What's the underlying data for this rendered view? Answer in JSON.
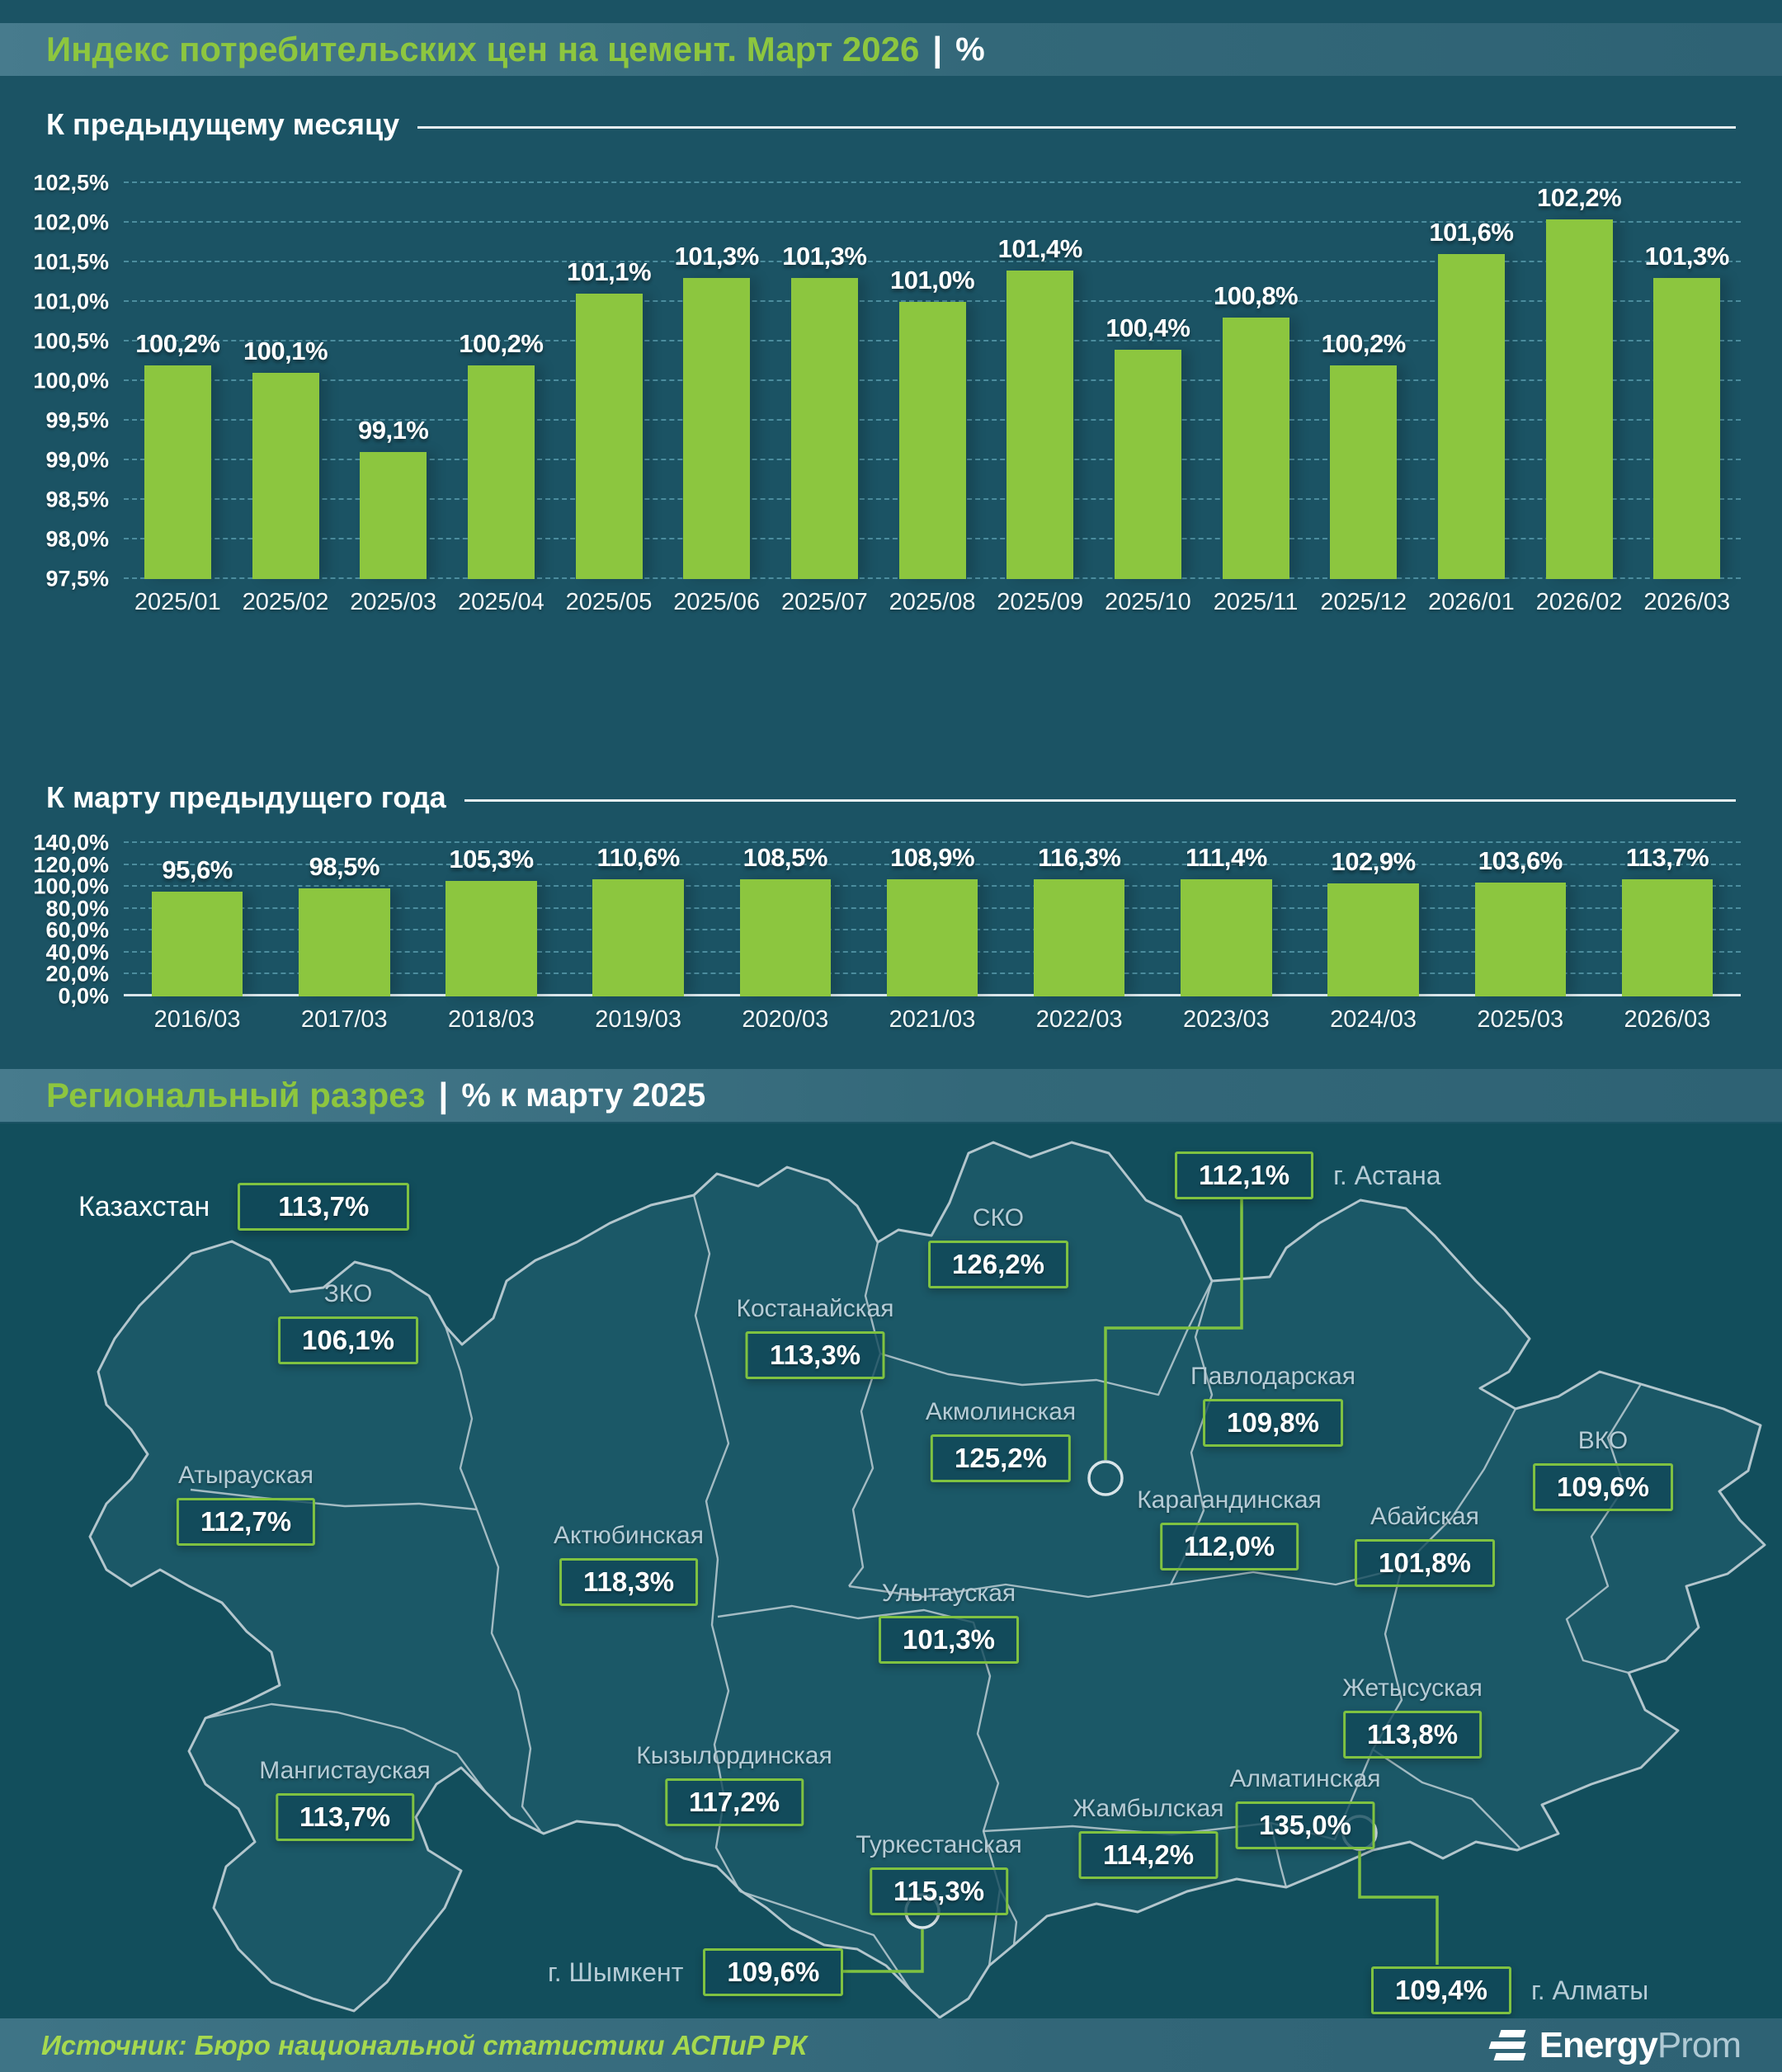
{
  "header": {
    "title": "Индекс потребительских цен на цемент. Март 2026",
    "separator": "|",
    "unit": "%"
  },
  "chart_data": [
    {
      "type": "bar",
      "heading": "К предыдущему месяцу",
      "categories": [
        "2025/01",
        "2025/02",
        "2025/03",
        "2025/04",
        "2025/05",
        "2025/06",
        "2025/07",
        "2025/08",
        "2025/09",
        "2025/10",
        "2025/11",
        "2025/12",
        "2026/01",
        "2026/02",
        "2026/03"
      ],
      "values": [
        100.2,
        100.1,
        99.1,
        100.2,
        101.1,
        101.3,
        101.3,
        101.0,
        101.4,
        100.4,
        100.8,
        100.2,
        101.6,
        102.2,
        101.3
      ],
      "labels": [
        "100,2%",
        "100,1%",
        "99,1%",
        "100,2%",
        "101,1%",
        "101,3%",
        "101,3%",
        "101,0%",
        "101,4%",
        "100,4%",
        "100,8%",
        "100,2%",
        "101,6%",
        "102,2%",
        "101,3%"
      ],
      "ylim": [
        97.5,
        102.5
      ],
      "yticks": [
        {
          "v": 102.5,
          "label": "102,5%"
        },
        {
          "v": 102.0,
          "label": "102,0%"
        },
        {
          "v": 101.5,
          "label": "101,5%"
        },
        {
          "v": 101.0,
          "label": "101,0%"
        },
        {
          "v": 100.5,
          "label": "100,5%"
        },
        {
          "v": 100.0,
          "label": "100,0%"
        },
        {
          "v": 99.5,
          "label": "99,5%"
        },
        {
          "v": 99.0,
          "label": "99,0%"
        },
        {
          "v": 98.5,
          "label": "98,5%"
        },
        {
          "v": 98.0,
          "label": "98,0%"
        },
        {
          "v": 97.5,
          "label": "97,5%"
        }
      ],
      "grid": "dashed",
      "bar_color": "#8CC63F"
    },
    {
      "type": "bar",
      "heading": "К марту предыдущего года",
      "categories": [
        "2016/03",
        "2017/03",
        "2018/03",
        "2019/03",
        "2020/03",
        "2021/03",
        "2022/03",
        "2023/03",
        "2024/03",
        "2025/03",
        "2026/03"
      ],
      "values": [
        95.6,
        98.5,
        105.3,
        110.6,
        108.5,
        108.9,
        116.3,
        111.4,
        102.9,
        103.6,
        113.7
      ],
      "labels": [
        "95,6%",
        "98,5%",
        "105,3%",
        "110,6%",
        "108,5%",
        "108,9%",
        "116,3%",
        "111,4%",
        "102,9%",
        "103,6%",
        "113,7%"
      ],
      "ylim": [
        0,
        140
      ],
      "yticks": [
        {
          "v": 140,
          "label": "140,0%"
        },
        {
          "v": 120,
          "label": "120,0%"
        },
        {
          "v": 100,
          "label": "100,0%"
        },
        {
          "v": 80,
          "label": "80,0%"
        },
        {
          "v": 60,
          "label": "60,0%"
        },
        {
          "v": 40,
          "label": "40,0%"
        },
        {
          "v": 20,
          "label": "20,0%"
        },
        {
          "v": 0,
          "label": "0,0%",
          "solid": true
        }
      ],
      "grid": "dashed",
      "bar_color": "#8CC63F"
    }
  ],
  "region_section": {
    "title": "Региональный разрез",
    "separator": "|",
    "subtitle": "% к марту 2025"
  },
  "map": {
    "country": {
      "name": "Казахстан",
      "value": "113,7%"
    },
    "regions": [
      {
        "name": "СКО",
        "value": "126,2%"
      },
      {
        "name": "Костанайская",
        "value": "113,3%"
      },
      {
        "name": "Акмолинская",
        "value": "125,2%"
      },
      {
        "name": "Павлодарская",
        "value": "109,8%"
      },
      {
        "name": "ЗКО",
        "value": "106,1%"
      },
      {
        "name": "ВКО",
        "value": "109,6%"
      },
      {
        "name": "Актюбинская",
        "value": "118,3%"
      },
      {
        "name": "Карагандинская",
        "value": "112,0%"
      },
      {
        "name": "Абайская",
        "value": "101,8%"
      },
      {
        "name": "Атырауская",
        "value": "112,7%"
      },
      {
        "name": "Улытауская",
        "value": "101,3%"
      },
      {
        "name": "Жетысуская",
        "value": "113,8%"
      },
      {
        "name": "Кызылординская",
        "value": "117,2%"
      },
      {
        "name": "Алматинская",
        "value": "135,0%"
      },
      {
        "name": "Мангистауская",
        "value": "113,7%"
      },
      {
        "name": "Жамбылская",
        "value": "114,2%"
      },
      {
        "name": "Туркестанская",
        "value": "115,3%"
      }
    ],
    "cities": [
      {
        "name": "г. Астана",
        "value": "112,1%"
      },
      {
        "name": "г. Алматы",
        "value": "109,4%"
      },
      {
        "name": "г. Шымкент",
        "value": "109,6%"
      }
    ]
  },
  "footer": {
    "source": "Источник: Бюро национальной статистики АСПиР РК",
    "logo": {
      "bold": "Energy",
      "light": "Prom"
    }
  },
  "colors": {
    "accent_green": "#8CC63F",
    "box_border": "#7FC241",
    "page_bg": "#1B5364",
    "map_bg": "#124E5C"
  }
}
